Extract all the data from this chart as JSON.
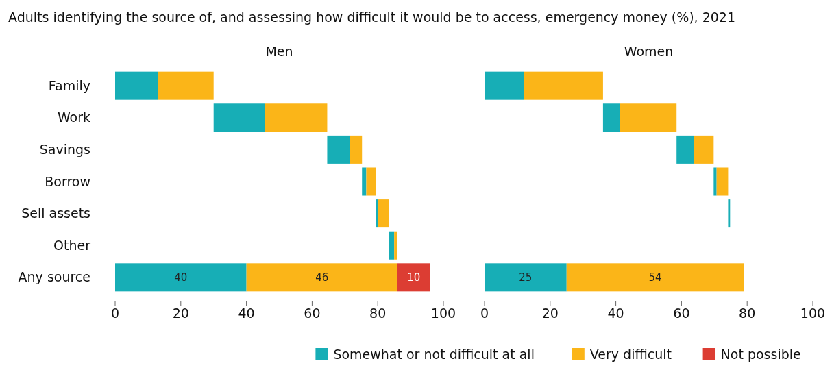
{
  "chart_data": [
    {
      "type": "bar",
      "title": "Adults identifying the source of, and assessing how difficult it would be to access, emergency money (%), 2021",
      "subtitle": "Men",
      "orientation": "horizontal",
      "categories": [
        "Family",
        "Work",
        "Savings",
        "Borrow",
        "Sell assets",
        "Other",
        "Any source"
      ],
      "series": [
        {
          "name": "Somewhat or not difficult at all",
          "color": "#17aeb6",
          "base": [
            0,
            30,
            64.6,
            75.2,
            79.4,
            83.4,
            0
          ],
          "values": [
            13,
            15.6,
            7,
            1.3,
            0.7,
            1.6,
            40
          ],
          "value_labels": [
            null,
            null,
            null,
            null,
            null,
            null,
            "40"
          ]
        },
        {
          "name": "Very difficult",
          "color": "#fbb518",
          "base": [
            13,
            45.6,
            71.6,
            76.5,
            80.1,
            85,
            40
          ],
          "values": [
            17,
            19,
            3.6,
            2.9,
            3.3,
            0.9,
            46
          ],
          "value_labels": [
            null,
            null,
            null,
            null,
            null,
            null,
            "46"
          ]
        },
        {
          "name": "Not possible",
          "color": "#dc3d33",
          "base": [
            null,
            null,
            null,
            null,
            null,
            null,
            86
          ],
          "values": [
            null,
            null,
            null,
            null,
            null,
            null,
            10
          ],
          "value_labels": [
            null,
            null,
            null,
            null,
            null,
            null,
            "10"
          ]
        }
      ],
      "xlim": [
        0,
        100
      ],
      "xticks": [
        0,
        20,
        40,
        60,
        80,
        100
      ],
      "grid": false,
      "legend": "bottom"
    },
    {
      "type": "bar",
      "subtitle": "Women",
      "orientation": "horizontal",
      "categories": [
        null,
        null,
        null,
        null,
        null,
        null,
        null
      ],
      "series": [
        {
          "color": "#17aeb6",
          "base": [
            0,
            36.1,
            58.5,
            69.8,
            74.2,
            null,
            0
          ],
          "values": [
            12.1,
            5.2,
            5.3,
            0.9,
            0.6,
            null,
            25
          ],
          "value_labels": [
            null,
            null,
            null,
            null,
            null,
            null,
            "25"
          ]
        },
        {
          "color": "#fbb518",
          "base": [
            12.1,
            41.3,
            63.8,
            70.7,
            null,
            null,
            25
          ],
          "values": [
            24,
            17.2,
            6,
            3.5,
            null,
            null,
            54
          ],
          "value_labels": [
            null,
            null,
            null,
            null,
            null,
            null,
            "54"
          ]
        }
      ],
      "xlim": [
        0,
        100
      ],
      "xticks": [
        0,
        20,
        40,
        60,
        80,
        100
      ],
      "grid": false
    }
  ]
}
